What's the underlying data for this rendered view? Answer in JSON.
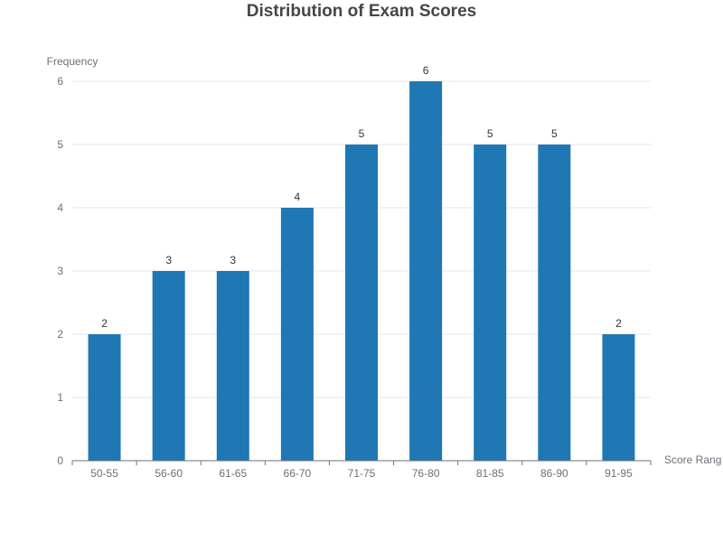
{
  "chart_data": {
    "type": "bar",
    "title": "Distribution of Exam Scores",
    "xlabel": "Score Rang",
    "ylabel": "Frequency",
    "categories": [
      "50-55",
      "56-60",
      "61-65",
      "66-70",
      "71-75",
      "76-80",
      "81-85",
      "86-90",
      "91-95"
    ],
    "series": [
      {
        "values": [
          2,
          3,
          3,
          4,
          5,
          6,
          5,
          5,
          2
        ],
        "color": "#1f77b4"
      }
    ],
    "ylim": [
      0,
      6
    ],
    "yticks": [
      0,
      1,
      2,
      3,
      4,
      5,
      6
    ],
    "grid": true,
    "data_labels": true
  }
}
